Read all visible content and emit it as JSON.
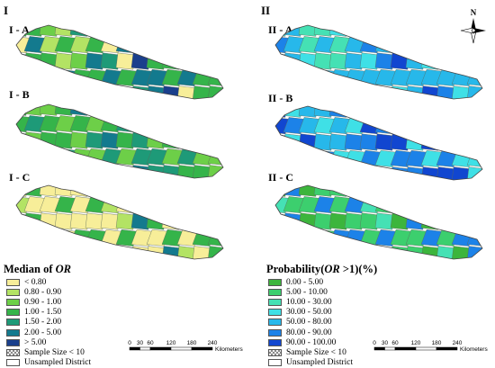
{
  "panels": [
    {
      "label": "I",
      "rows": [
        "I - A",
        "I - B",
        "I - C"
      ],
      "legend_title_prefix": "Median of ",
      "legend_title_em": "OR",
      "legend_title_suffix": "",
      "legend": [
        {
          "label": "< 0.80",
          "color": "#f7ee99"
        },
        {
          "label": "0.80 - 0.90",
          "color": "#b3e364"
        },
        {
          "label": "0.90 - 1.00",
          "color": "#6dcf48"
        },
        {
          "label": "1.00 - 1.50",
          "color": "#35b44a"
        },
        {
          "label": "1.50 - 2.00",
          "color": "#1e9a78"
        },
        {
          "label": "2.00 - 5.00",
          "color": "#137a8e"
        },
        {
          "label": "> 5.00",
          "color": "#1a3f8c"
        },
        {
          "label": "Sample Size < 10",
          "pattern": "hatch"
        },
        {
          "label": "Unsampled District",
          "color": "#ffffff"
        }
      ]
    },
    {
      "label": "II",
      "rows": [
        "II - A",
        "II - B",
        "II - C"
      ],
      "legend_title_prefix": "Probability(",
      "legend_title_em": "OR",
      "legend_title_suffix": " >1)(%)",
      "legend": [
        {
          "label": "0.00 - 5.00",
          "color": "#3cb53c"
        },
        {
          "label": "5.00 - 10.00",
          "color": "#3ccf6e"
        },
        {
          "label": "10.00 - 30.00",
          "color": "#45e1b4"
        },
        {
          "label": "30.00 - 50.00",
          "color": "#3fe0e6"
        },
        {
          "label": "50.00 - 80.00",
          "color": "#27b8ea"
        },
        {
          "label": "80.00 - 90.00",
          "color": "#1c82e8"
        },
        {
          "label": "90.00 - 100.00",
          "color": "#1146d0"
        },
        {
          "label": "Sample Size < 10",
          "pattern": "hatch"
        },
        {
          "label": "Unsampled District",
          "color": "#ffffff"
        }
      ]
    }
  ],
  "scale_bar": {
    "ticks": [
      "0",
      "30",
      "60",
      "120",
      "180",
      "240"
    ],
    "unit": "Kilometers"
  },
  "north_arrow": {
    "letter": "N"
  },
  "map_fills": {
    "I-A": [
      "#35b44a",
      "#137a8e",
      "#6dcf48",
      "#f7ee99",
      "#1e9a78",
      "#35b44a",
      "#1a3f8c",
      "#b3e364"
    ],
    "I-B": [
      "#35b44a",
      "#1e9a78",
      "#6dcf48",
      "#35b44a",
      "#137a8e",
      "#6dcf48",
      "#1e9a78",
      "#35b44a"
    ],
    "I-C": [
      "#f7ee99",
      "#f7ee99",
      "#f7ee99",
      "#b3e364",
      "#f7ee99",
      "#35b44a",
      "#137a8e",
      "#f7ee99"
    ],
    "II-A": [
      "#3fe0e6",
      "#27b8ea",
      "#45e1b4",
      "#1c82e8",
      "#3fe0e6",
      "#27b8ea",
      "#1146d0",
      "#45e1b4"
    ],
    "II-B": [
      "#1146d0",
      "#1c82e8",
      "#27b8ea",
      "#1146d0",
      "#1c82e8",
      "#3fe0e6",
      "#1146d0",
      "#27b8ea"
    ],
    "II-C": [
      "#3cb53c",
      "#3ccf6e",
      "#3cb53c",
      "#45e1b4",
      "#3ccf6e",
      "#1c82e8",
      "#3cb53c",
      "#3ccf6e"
    ]
  }
}
